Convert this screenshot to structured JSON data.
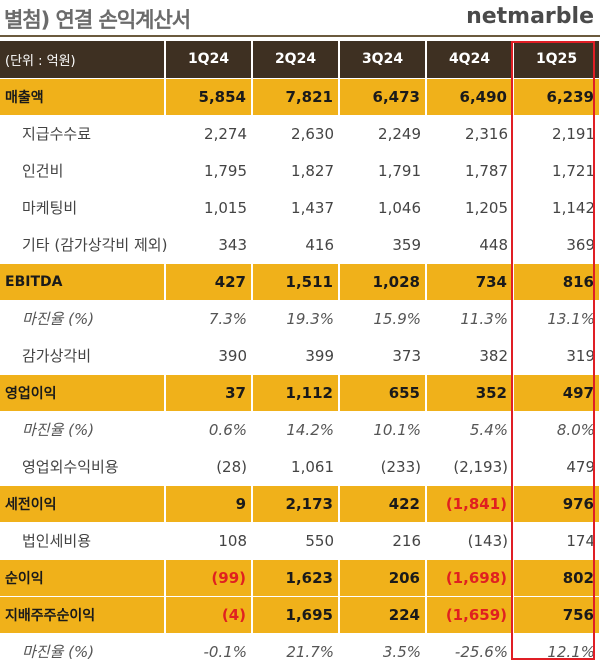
{
  "title": "별첨) 연결 손익계산서",
  "logo": "netmarble",
  "colors": {
    "header_bg": "#3e3022",
    "major_row": "#f0b11a",
    "negative": "#e02020",
    "highlight_border": "#e01e25"
  },
  "table": {
    "unit_label": "(단위 : 억원)",
    "columns": [
      "1Q24",
      "2Q24",
      "3Q24",
      "4Q24",
      "1Q25"
    ],
    "rows": [
      {
        "label": "매출액",
        "values": [
          "5,854",
          "7,821",
          "6,473",
          "6,490",
          "6,239"
        ]
      },
      {
        "label": "지급수수료",
        "values": [
          "2,274",
          "2,630",
          "2,249",
          "2,316",
          "2,191"
        ]
      },
      {
        "label": "인건비",
        "values": [
          "1,795",
          "1,827",
          "1,791",
          "1,787",
          "1,721"
        ]
      },
      {
        "label": "마케팅비",
        "values": [
          "1,015",
          "1,437",
          "1,046",
          "1,205",
          "1,142"
        ]
      },
      {
        "label": "기타 (감가상각비 제외)",
        "values": [
          "343",
          "416",
          "359",
          "448",
          "369"
        ]
      },
      {
        "label": "EBITDA",
        "values": [
          "427",
          "1,511",
          "1,028",
          "734",
          "816"
        ]
      },
      {
        "label": "마진율 (%)",
        "values": [
          "7.3%",
          "19.3%",
          "15.9%",
          "11.3%",
          "13.1%"
        ]
      },
      {
        "label": "감가상각비",
        "values": [
          "390",
          "399",
          "373",
          "382",
          "319"
        ]
      },
      {
        "label": "영업이익",
        "values": [
          "37",
          "1,112",
          "655",
          "352",
          "497"
        ]
      },
      {
        "label": "마진율 (%)",
        "values": [
          "0.6%",
          "14.2%",
          "10.1%",
          "5.4%",
          "8.0%"
        ]
      },
      {
        "label": "영업외수익비용",
        "values": [
          "(28)",
          "1,061",
          "(233)",
          "(2,193)",
          "479"
        ]
      },
      {
        "label": "세전이익",
        "values": [
          "9",
          "2,173",
          "422",
          "(1,841)",
          "976"
        ]
      },
      {
        "label": "법인세비용",
        "values": [
          "108",
          "550",
          "216",
          "(143)",
          "174"
        ]
      },
      {
        "label": "순이익",
        "values": [
          "(99)",
          "1,623",
          "206",
          "(1,698)",
          "802"
        ]
      },
      {
        "label": "지배주주순이익",
        "values": [
          "(4)",
          "1,695",
          "224",
          "(1,659)",
          "756"
        ]
      },
      {
        "label": "마진율 (%)",
        "values": [
          "-0.1%",
          "21.7%",
          "3.5%",
          "-25.6%",
          "12.1%"
        ]
      }
    ]
  }
}
